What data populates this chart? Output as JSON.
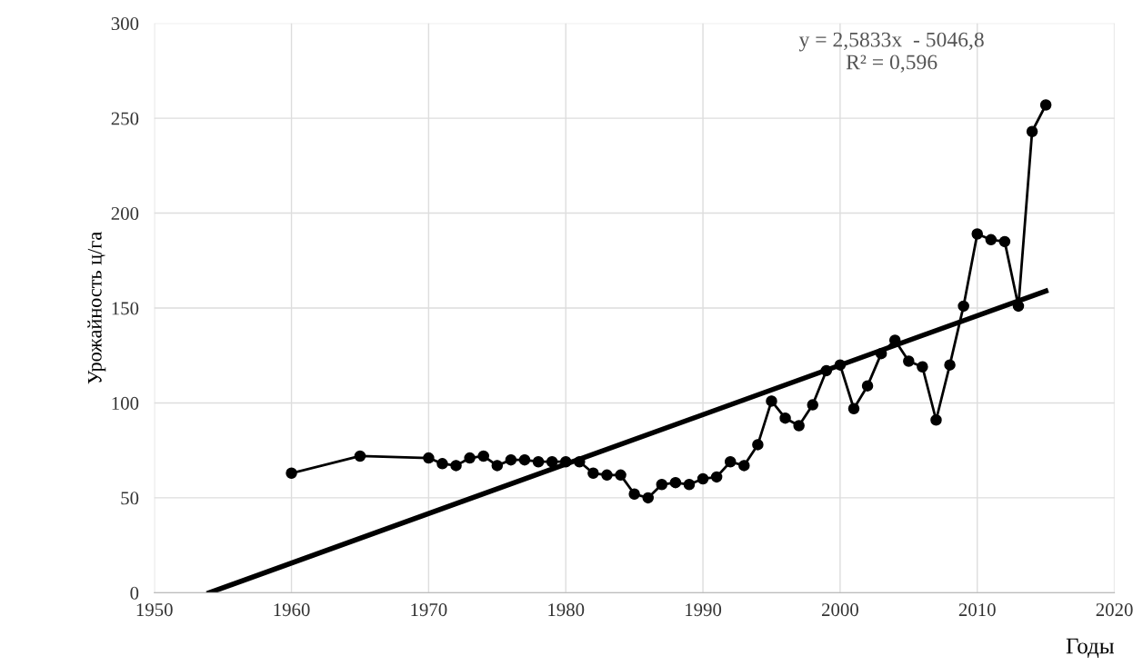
{
  "chart_data": {
    "type": "line",
    "xlabel": "Годы",
    "ylabel": "Урожайность ц/га",
    "xlim": [
      1950,
      2020
    ],
    "xticks": [
      1950,
      1960,
      1970,
      1980,
      1990,
      2000,
      2010,
      2020
    ],
    "ylim": [
      0,
      300
    ],
    "yticks": [
      0,
      50,
      100,
      150,
      200,
      250,
      300
    ],
    "grid": true,
    "legend": false,
    "series": [
      {
        "color": "#000000",
        "marker": "circle",
        "line_style": "solid",
        "x": [
          1960,
          1965,
          1970,
          1971,
          1972,
          1973,
          1974,
          1975,
          1976,
          1977,
          1978,
          1979,
          1980,
          1981,
          1982,
          1983,
          1984,
          1985,
          1986,
          1987,
          1988,
          1989,
          1990,
          1991,
          1992,
          1993,
          1994,
          1995,
          1996,
          1997,
          1998,
          1999,
          2000,
          2001,
          2002,
          2003,
          2004,
          2005,
          2006,
          2007,
          2008,
          2009,
          2010,
          2011,
          2012,
          2013,
          2014,
          2015
        ],
        "values": [
          63,
          72,
          71,
          68,
          67,
          71,
          72,
          67,
          70,
          70,
          69,
          69,
          69,
          69,
          63,
          62,
          62,
          52,
          50,
          57,
          58,
          57,
          60,
          61,
          69,
          67,
          78,
          101,
          92,
          88,
          99,
          117,
          120,
          97,
          109,
          126,
          133,
          122,
          119,
          91,
          120,
          151,
          189,
          186,
          185,
          151,
          243,
          257
        ]
      },
      {
        "color": "#000000",
        "marker": "none",
        "line_style": "solid",
        "x": [
          1954,
          2015
        ],
        "values": [
          0,
          159
        ]
      }
    ],
    "annotations": [
      "y = 2,5833x  - 5046,8\nR² = 0,596"
    ]
  }
}
